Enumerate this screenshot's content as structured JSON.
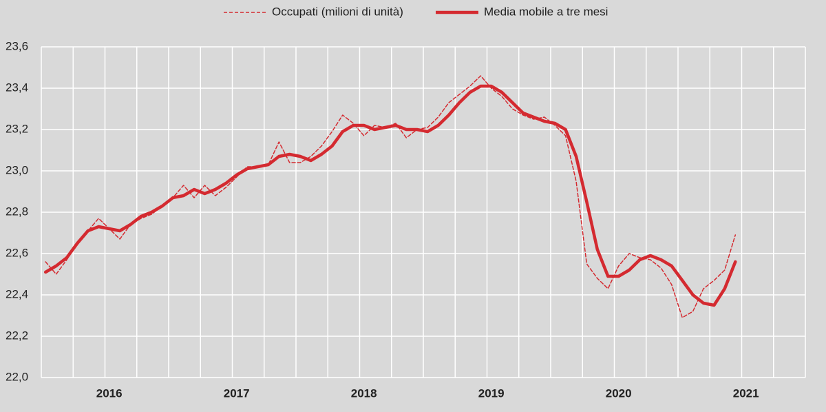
{
  "chart_data": {
    "type": "line",
    "categories": [
      null,
      null,
      null,
      null,
      null,
      null,
      "2016",
      null,
      null,
      null,
      null,
      null,
      null,
      null,
      null,
      null,
      null,
      null,
      "2017",
      null,
      null,
      null,
      null,
      null,
      null,
      null,
      null,
      null,
      null,
      null,
      "2018",
      null,
      null,
      null,
      null,
      null,
      null,
      null,
      null,
      null,
      null,
      null,
      "2019",
      null,
      null,
      null,
      null,
      null,
      null,
      null,
      null,
      null,
      null,
      null,
      "2020",
      null,
      null,
      null,
      null,
      null,
      null,
      null,
      null,
      null,
      null,
      null,
      "2021"
    ],
    "series": [
      {
        "name": "Occupati (milioni di unità)",
        "color": "#d42a30",
        "dashed": true,
        "values": [
          22.56,
          22.5,
          22.57,
          22.65,
          22.71,
          22.77,
          22.72,
          22.67,
          22.74,
          22.77,
          22.79,
          22.83,
          22.87,
          22.93,
          22.87,
          22.93,
          22.88,
          22.92,
          22.97,
          23.02,
          23.02,
          23.03,
          23.14,
          23.04,
          23.04,
          23.07,
          23.12,
          23.19,
          23.27,
          23.23,
          23.17,
          23.22,
          23.21,
          23.23,
          23.16,
          23.2,
          23.21,
          23.26,
          23.33,
          23.37,
          23.41,
          23.46,
          23.4,
          23.36,
          23.3,
          23.27,
          23.25,
          23.26,
          23.22,
          23.17,
          22.95,
          22.55,
          22.48,
          22.43,
          22.54,
          22.6,
          22.58,
          22.57,
          22.53,
          22.45,
          22.29,
          22.32,
          22.43,
          22.47,
          22.52,
          22.69,
          null
        ]
      },
      {
        "name": "Media mobile a tre mesi",
        "color": "#d42a30",
        "dashed": false,
        "values": [
          22.51,
          22.54,
          22.58,
          22.65,
          22.71,
          22.73,
          22.72,
          22.71,
          22.74,
          22.78,
          22.8,
          22.83,
          22.87,
          22.88,
          22.91,
          22.89,
          22.91,
          22.94,
          22.98,
          23.01,
          23.02,
          23.03,
          23.07,
          23.08,
          23.07,
          23.05,
          23.08,
          23.12,
          23.19,
          23.22,
          23.22,
          23.2,
          23.21,
          23.22,
          23.2,
          23.2,
          23.19,
          23.22,
          23.27,
          23.33,
          23.38,
          23.41,
          23.41,
          23.38,
          23.33,
          23.28,
          23.26,
          23.24,
          23.23,
          23.2,
          23.07,
          22.85,
          22.62,
          22.49,
          22.49,
          22.52,
          22.57,
          22.59,
          22.57,
          22.54,
          22.47,
          22.4,
          22.36,
          22.35,
          22.43,
          22.56,
          null
        ]
      }
    ],
    "ylim": [
      22.0,
      23.6
    ],
    "yticks": [
      {
        "value": 22.0,
        "label": "22,0"
      },
      {
        "value": 22.2,
        "label": "22,2"
      },
      {
        "value": 22.4,
        "label": "22,4"
      },
      {
        "value": 22.6,
        "label": "22,6"
      },
      {
        "value": 22.8,
        "label": "22,8"
      },
      {
        "value": 23.0,
        "label": "23,0"
      },
      {
        "value": 23.2,
        "label": "23,2"
      },
      {
        "value": 23.4,
        "label": "23,4"
      },
      {
        "value": 23.6,
        "label": "23,6"
      }
    ],
    "grid": true,
    "legend": "top"
  }
}
